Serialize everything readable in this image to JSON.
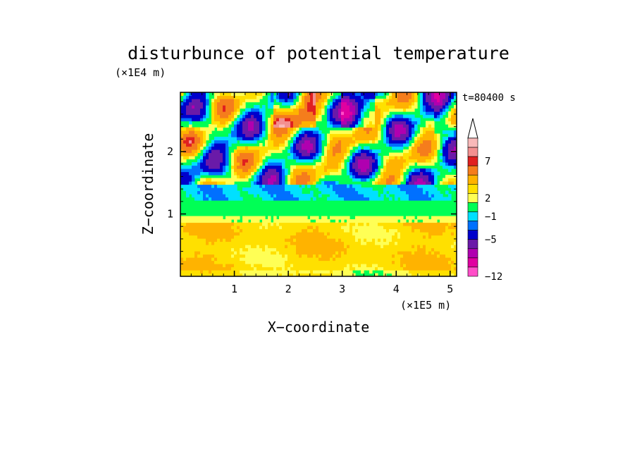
{
  "chart_data": {
    "type": "heatmap",
    "title": "disturbunce of potential temperature",
    "time_label": "t=80400 s",
    "xlabel": "X−coordinate",
    "ylabel": "Z−coordinate",
    "x_unit": "(×1E5 m)",
    "y_unit": "(×1E4 m)",
    "xlim": [
      0,
      5.12
    ],
    "ylim": [
      0,
      2.95
    ],
    "x_ticks": [
      "1",
      "2",
      "3",
      "4",
      "5"
    ],
    "y_ticks": [
      "1",
      "2"
    ],
    "x_tick_values": [
      1,
      2,
      3,
      4,
      5
    ],
    "y_tick_values": [
      1,
      2
    ],
    "colorbar": {
      "tick_labels": [
        "7",
        "2",
        "−1",
        "−5",
        "−12"
      ],
      "levels_top_to_bottom": [
        "#f9b9b9",
        "#f39090",
        "#e02020",
        "#f57d1c",
        "#ffb300",
        "#ffe000",
        "#ffff55",
        "#00ff55",
        "#00e0ff",
        "#0070ff",
        "#0000cc",
        "#6a1aa8",
        "#b000b0",
        "#e000a0",
        "#ff4ec8"
      ]
    },
    "z_description_rows": [
      {
        "z_range": [
          2.0,
          2.95
        ],
        "value_hint": "mixed strong positive and negative"
      },
      {
        "z_range": [
          1.2,
          2.0
        ],
        "value_hint": "mixed, wave pattern"
      },
      {
        "z_range": [
          0.9,
          1.2
        ],
        "value_hint": "near zero"
      },
      {
        "z_range": [
          0.0,
          0.9
        ],
        "value_hint": "weak positive"
      }
    ]
  }
}
